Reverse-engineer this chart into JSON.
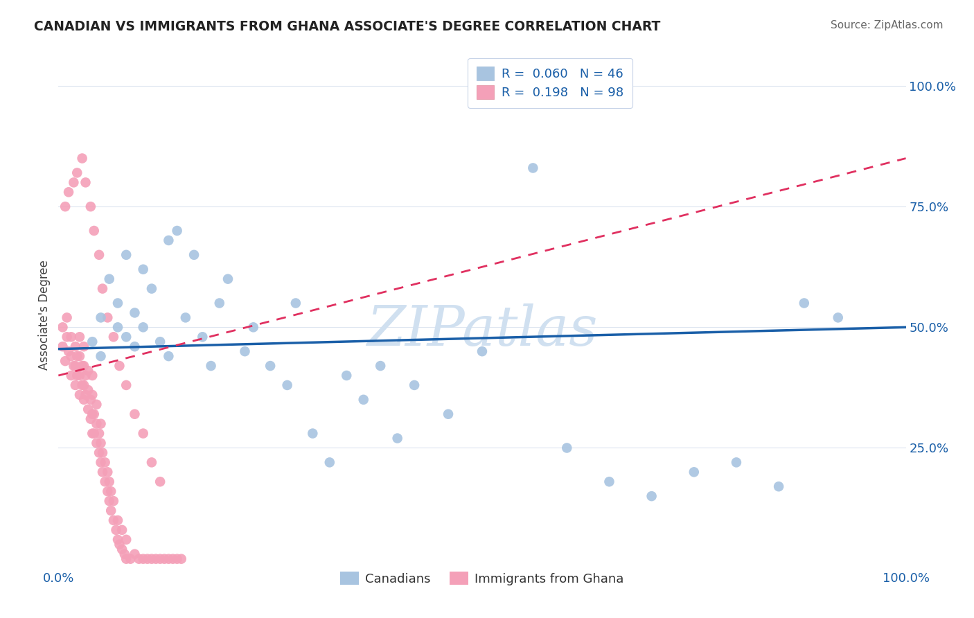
{
  "title": "CANADIAN VS IMMIGRANTS FROM GHANA ASSOCIATE'S DEGREE CORRELATION CHART",
  "source": "Source: ZipAtlas.com",
  "ylabel": "Associate's Degree",
  "r_canadian": 0.06,
  "n_canadian": 46,
  "r_ghana": 0.198,
  "n_ghana": 98,
  "canadian_color": "#a8c4e0",
  "ghana_color": "#f4a0b8",
  "regression_canadian_color": "#1a5fa8",
  "regression_ghana_color": "#e03060",
  "watermark_color": "#d0e0f0",
  "background_color": "#ffffff",
  "grid_color": "#dde5f0",
  "title_color": "#222222",
  "source_color": "#666666",
  "tick_color": "#1a5fa8",
  "ytick_labels": [
    "100.0%",
    "75.0%",
    "50.0%",
    "25.0%"
  ],
  "ytick_values": [
    1.0,
    0.75,
    0.5,
    0.25
  ],
  "xlim": [
    0.0,
    1.0
  ],
  "ylim": [
    0.0,
    1.05
  ],
  "canadians_x": [
    0.04,
    0.05,
    0.05,
    0.06,
    0.07,
    0.07,
    0.08,
    0.08,
    0.09,
    0.09,
    0.1,
    0.1,
    0.11,
    0.12,
    0.13,
    0.13,
    0.14,
    0.15,
    0.16,
    0.17,
    0.18,
    0.19,
    0.2,
    0.22,
    0.23,
    0.25,
    0.27,
    0.28,
    0.3,
    0.32,
    0.34,
    0.36,
    0.38,
    0.4,
    0.42,
    0.46,
    0.5,
    0.56,
    0.6,
    0.65,
    0.7,
    0.75,
    0.8,
    0.85,
    0.88,
    0.92
  ],
  "canadians_y": [
    0.47,
    0.52,
    0.44,
    0.6,
    0.5,
    0.55,
    0.48,
    0.65,
    0.46,
    0.53,
    0.5,
    0.62,
    0.58,
    0.47,
    0.68,
    0.44,
    0.7,
    0.52,
    0.65,
    0.48,
    0.42,
    0.55,
    0.6,
    0.45,
    0.5,
    0.42,
    0.38,
    0.55,
    0.28,
    0.22,
    0.4,
    0.35,
    0.42,
    0.27,
    0.38,
    0.32,
    0.45,
    0.83,
    0.25,
    0.18,
    0.15,
    0.2,
    0.22,
    0.17,
    0.55,
    0.52
  ],
  "ghana_x": [
    0.005,
    0.005,
    0.008,
    0.01,
    0.01,
    0.012,
    0.015,
    0.015,
    0.015,
    0.018,
    0.02,
    0.02,
    0.02,
    0.022,
    0.022,
    0.025,
    0.025,
    0.025,
    0.025,
    0.028,
    0.028,
    0.03,
    0.03,
    0.03,
    0.03,
    0.032,
    0.032,
    0.035,
    0.035,
    0.035,
    0.038,
    0.038,
    0.04,
    0.04,
    0.04,
    0.04,
    0.042,
    0.042,
    0.045,
    0.045,
    0.045,
    0.048,
    0.048,
    0.05,
    0.05,
    0.05,
    0.052,
    0.052,
    0.055,
    0.055,
    0.058,
    0.058,
    0.06,
    0.06,
    0.062,
    0.062,
    0.065,
    0.065,
    0.068,
    0.07,
    0.07,
    0.072,
    0.075,
    0.075,
    0.078,
    0.08,
    0.08,
    0.085,
    0.09,
    0.095,
    0.1,
    0.105,
    0.11,
    0.115,
    0.12,
    0.125,
    0.13,
    0.135,
    0.14,
    0.145,
    0.008,
    0.012,
    0.018,
    0.022,
    0.028,
    0.032,
    0.038,
    0.042,
    0.048,
    0.052,
    0.058,
    0.065,
    0.072,
    0.08,
    0.09,
    0.1,
    0.11,
    0.12
  ],
  "ghana_y": [
    0.46,
    0.5,
    0.43,
    0.48,
    0.52,
    0.45,
    0.4,
    0.44,
    0.48,
    0.42,
    0.38,
    0.42,
    0.46,
    0.4,
    0.44,
    0.36,
    0.4,
    0.44,
    0.48,
    0.38,
    0.42,
    0.35,
    0.38,
    0.42,
    0.46,
    0.36,
    0.4,
    0.33,
    0.37,
    0.41,
    0.31,
    0.35,
    0.28,
    0.32,
    0.36,
    0.4,
    0.28,
    0.32,
    0.26,
    0.3,
    0.34,
    0.24,
    0.28,
    0.22,
    0.26,
    0.3,
    0.2,
    0.24,
    0.18,
    0.22,
    0.16,
    0.2,
    0.14,
    0.18,
    0.12,
    0.16,
    0.1,
    0.14,
    0.08,
    0.06,
    0.1,
    0.05,
    0.04,
    0.08,
    0.03,
    0.02,
    0.06,
    0.02,
    0.03,
    0.02,
    0.02,
    0.02,
    0.02,
    0.02,
    0.02,
    0.02,
    0.02,
    0.02,
    0.02,
    0.02,
    0.75,
    0.78,
    0.8,
    0.82,
    0.85,
    0.8,
    0.75,
    0.7,
    0.65,
    0.58,
    0.52,
    0.48,
    0.42,
    0.38,
    0.32,
    0.28,
    0.22,
    0.18
  ],
  "regression_canadian_y0": 0.455,
  "regression_canadian_y1": 0.5,
  "regression_ghana_y0": 0.4,
  "regression_ghana_y1": 0.85
}
